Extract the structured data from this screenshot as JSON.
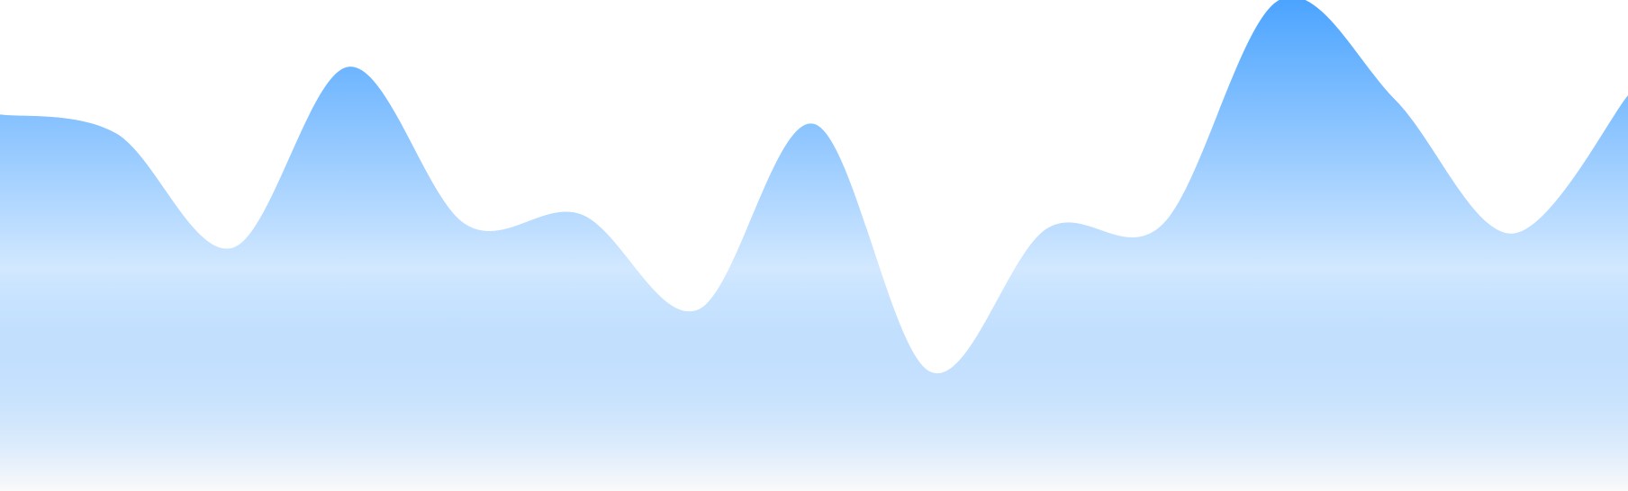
{
  "chart_data": {
    "type": "area",
    "title": "",
    "xlabel": "",
    "ylabel": "",
    "grid": false,
    "legend": "none",
    "x": [
      0,
      1,
      2,
      3,
      4,
      5,
      6,
      7,
      8,
      9,
      10,
      11,
      12,
      13,
      14
    ],
    "series": [
      {
        "values": [
          0.76,
          0.72,
          0.48,
          0.86,
          0.53,
          0.55,
          0.35,
          0.74,
          0.22,
          0.52,
          0.53,
          1.0,
          0.79,
          0.51,
          0.8
        ]
      }
    ],
    "ylim": [
      0,
      1
    ],
    "colors": {
      "gradient_top": "#4aa3ff",
      "gradient_bottom": "#fafafa"
    }
  }
}
